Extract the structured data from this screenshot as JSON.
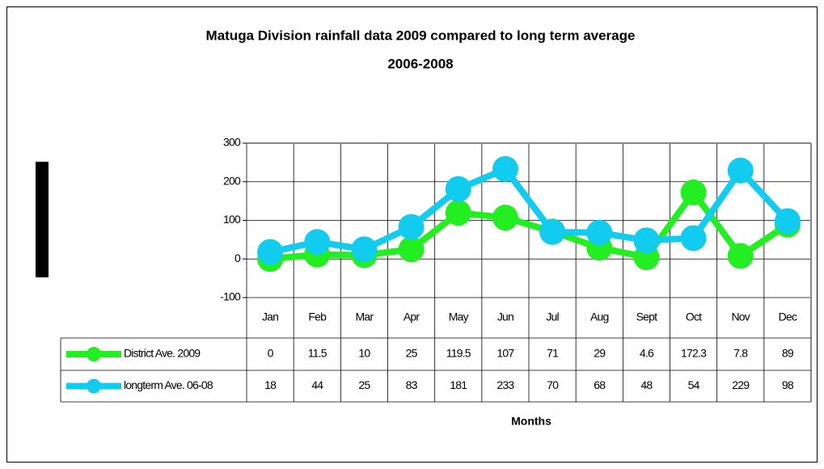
{
  "chart_data": {
    "type": "line",
    "title": "Matuga Division rainfall data 2009 compared to long term average",
    "subtitle": "2006-2008",
    "x_label": "Months",
    "categories": [
      "Jan",
      "Feb",
      "Mar",
      "Apr",
      "May",
      "Jun",
      "Jul",
      "Aug",
      "Sept",
      "Oct",
      "Nov",
      "Dec"
    ],
    "series": [
      {
        "name": "District Ave. 2009",
        "color": "#22ee22",
        "values": [
          0,
          11.5,
          10,
          25,
          119.5,
          107,
          71,
          29,
          4.6,
          172.3,
          7.8,
          89
        ]
      },
      {
        "name": "longterm Ave. 06-08",
        "color": "#11ccee",
        "values": [
          18,
          44,
          25,
          83,
          181,
          233,
          70,
          68,
          48,
          54,
          229,
          98
        ]
      }
    ],
    "ylim": [
      -100,
      300
    ],
    "yticks": [
      -100,
      0,
      100,
      200,
      300
    ],
    "grid": true
  }
}
